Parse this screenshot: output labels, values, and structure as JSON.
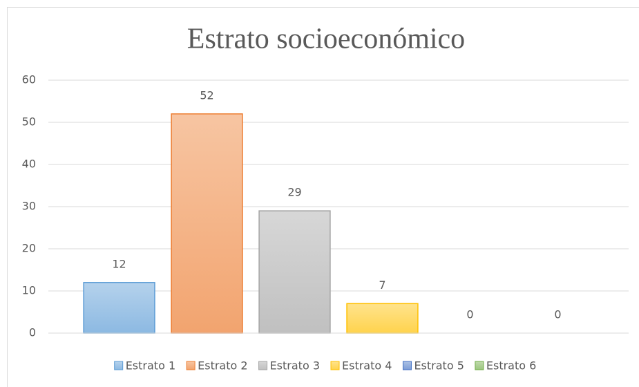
{
  "chart_data": {
    "type": "bar",
    "title": "Estrato socioeconómico",
    "categories": [
      null
    ],
    "series": [
      {
        "name": "Estrato 1",
        "color": "#5b9bd5",
        "values": [
          12
        ]
      },
      {
        "name": "Estrato 2",
        "color": "#ed7d31",
        "values": [
          52
        ]
      },
      {
        "name": "Estrato 3",
        "color": "#a5a5a5",
        "values": [
          29
        ]
      },
      {
        "name": "Estrato 4",
        "color": "#ffc000",
        "values": [
          7
        ]
      },
      {
        "name": "Estrato 5",
        "color": "#4472c4",
        "values": [
          0
        ]
      },
      {
        "name": "Estrato 6",
        "color": "#70ad47",
        "values": [
          0
        ]
      }
    ],
    "ylim": [
      0,
      60
    ],
    "yticks": [
      0,
      10,
      20,
      30,
      40,
      50,
      60
    ],
    "grid": true,
    "legend": "bottom"
  }
}
